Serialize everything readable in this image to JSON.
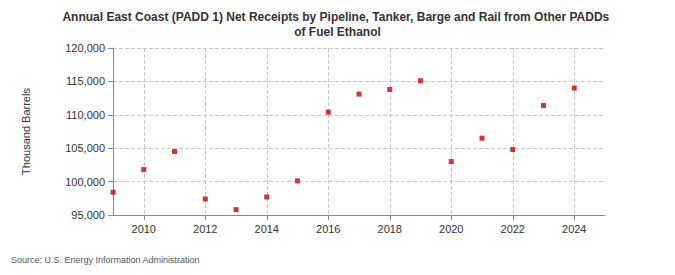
{
  "chart_data": {
    "type": "scatter",
    "title": "Annual East Coast (PADD 1) Net Receipts by Pipeline, Tanker, Barge and Rail from Other PADDs of Fuel Ethanol",
    "y_label": "Thousand Barrels",
    "source": "Source: U.S. Energy Information Administration",
    "x": [
      2009,
      2010,
      2011,
      2012,
      2013,
      2014,
      2015,
      2016,
      2017,
      2018,
      2019,
      2020,
      2021,
      2022,
      2023,
      2024
    ],
    "values": [
      98400,
      101800,
      104500,
      97400,
      95800,
      97700,
      100100,
      110400,
      113100,
      113800,
      115100,
      103000,
      106500,
      104800,
      111400,
      114000
    ],
    "color": "#cc0000",
    "marker": "square",
    "xlim": [
      2009,
      2025
    ],
    "xticks": [
      2010,
      2012,
      2014,
      2016,
      2018,
      2020,
      2022,
      2024
    ],
    "ylim": [
      95000,
      120000
    ],
    "yticks": [
      {
        "value": 95000,
        "label": "95,000"
      },
      {
        "value": 100000,
        "label": "100,000"
      },
      {
        "value": 105000,
        "label": "105,000"
      },
      {
        "value": 110000,
        "label": "110,000"
      },
      {
        "value": 115000,
        "label": "115,000"
      },
      {
        "value": 120000,
        "label": "120,000"
      }
    ],
    "grid": true
  }
}
